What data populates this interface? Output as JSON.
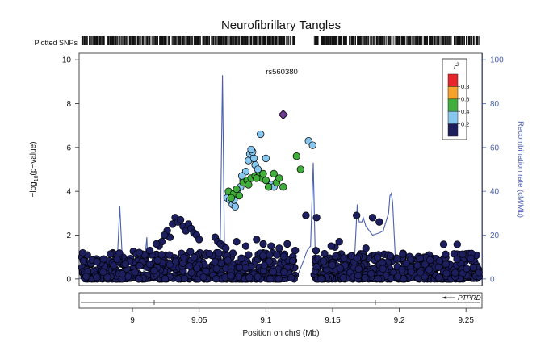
{
  "chart_data": {
    "type": "scatter",
    "title": "Neurofibrillary Tangles",
    "plotted_snps_label": "Plotted SNPs",
    "lead_snp": {
      "name": "rs560380",
      "x": 9.113,
      "y": 7.5
    },
    "xlabel": "Position on chr9 (Mb)",
    "ylabel": "−log10(p−value)",
    "y2label": "Recombination rate (cM/Mb)",
    "xlim": [
      8.96,
      9.262
    ],
    "ylim": [
      -0.3,
      10.3
    ],
    "y2lim": [
      -3,
      103
    ],
    "x_ticks": [
      9,
      9.05,
      9.1,
      9.15,
      9.2,
      9.25
    ],
    "x_tick_labels": [
      "9",
      "9.05",
      "9.1",
      "9.15",
      "9.2",
      "9.25"
    ],
    "y_ticks": [
      0,
      2,
      4,
      6,
      8,
      10
    ],
    "y_tick_labels": [
      "0",
      "2",
      "4",
      "6",
      "8",
      "10"
    ],
    "y2_ticks": [
      0,
      20,
      40,
      60,
      80,
      100
    ],
    "y2_tick_labels": [
      "0",
      "20",
      "40",
      "60",
      "80",
      "100"
    ],
    "legend": {
      "title": "r2",
      "position": "top-right",
      "labels": [
        "0.8",
        "0.6",
        "0.4",
        "0.2"
      ],
      "colors": [
        "#e8232a",
        "#f7a22a",
        "#3fae3a",
        "#86c6ef",
        "#1c1e5e"
      ]
    },
    "colors": {
      "lead": "#6b3a8e",
      "recomb": "#4a60b0",
      "point_outline": "#000000"
    },
    "gene": {
      "name": "PTPRD",
      "strand": "-",
      "x_start": 8.96,
      "x_end": 9.262
    },
    "series": [
      {
        "r2_bin": "0.4-0.6",
        "color": "#3fae3a",
        "x": [
          9.072,
          9.076,
          9.08,
          9.083,
          9.086,
          9.089,
          9.092,
          9.095,
          9.097,
          9.1,
          9.102,
          9.106,
          9.108,
          9.11,
          9.113,
          9.123,
          9.126,
          9.093,
          9.098,
          9.074,
          9.078,
          9.087
        ],
        "y": [
          4.0,
          3.9,
          3.8,
          4.4,
          4.5,
          4.6,
          4.7,
          4.7,
          4.6,
          4.5,
          4.2,
          4.8,
          4.4,
          4.6,
          4.2,
          5.6,
          5.0,
          4.6,
          4.8,
          3.7,
          4.1,
          4.3
        ]
      },
      {
        "r2_bin": "0.2-0.4",
        "color": "#86c6ef",
        "x": [
          9.071,
          9.073,
          9.075,
          9.077,
          9.079,
          9.081,
          9.083,
          9.085,
          9.087,
          9.088,
          9.09,
          9.092,
          9.094,
          9.096,
          9.1,
          9.104,
          9.106,
          9.132,
          9.135,
          9.089,
          9.091,
          9.082,
          9.076
        ],
        "y": [
          3.7,
          3.6,
          3.4,
          3.3,
          3.9,
          4.2,
          4.5,
          4.9,
          5.4,
          5.7,
          5.8,
          5.2,
          5.0,
          6.6,
          5.5,
          4.3,
          4.2,
          6.3,
          6.1,
          5.9,
          5.5,
          4.7,
          3.6
        ]
      },
      {
        "r2_bin": "0-0.2 (elevated)",
        "color": "#1c1e5e",
        "x": [
          9.03,
          9.032,
          9.034,
          9.036,
          9.038,
          9.04,
          9.042,
          9.044,
          9.046,
          9.048,
          9.05,
          9.028,
          9.026,
          9.024,
          9.022,
          9.02,
          9.018,
          9.013,
          9.009,
          9.005,
          9.062,
          9.064,
          9.066,
          9.068,
          9.07,
          9.093,
          9.098,
          9.104,
          9.11,
          9.116,
          9.122,
          9.13,
          9.138,
          9.168,
          9.18,
          9.185,
          9.149,
          9.175,
          9.078,
          9.085,
          9.155
        ],
        "y": [
          2.5,
          2.8,
          2.6,
          2.7,
          2.4,
          2.2,
          2.5,
          2.3,
          2.1,
          2.0,
          1.8,
          1.9,
          2.2,
          2.0,
          1.7,
          1.5,
          1.6,
          1.3,
          1.1,
          1.2,
          1.9,
          1.7,
          1.6,
          1.5,
          1.4,
          1.8,
          1.6,
          1.5,
          1.4,
          1.6,
          1.3,
          2.9,
          2.8,
          2.9,
          2.8,
          2.6,
          1.5,
          1.4,
          1.7,
          1.5,
          1.7
        ]
      }
    ],
    "recombination": {
      "x": [
        8.96,
        8.968,
        8.972,
        8.976,
        8.983,
        8.988,
        8.9905,
        8.993,
        8.997,
        9.0,
        9.005,
        9.008,
        9.0108,
        9.0118,
        9.0128,
        9.014,
        9.02,
        9.03,
        9.04,
        9.05,
        9.055,
        9.06,
        9.0655,
        9.0675,
        9.069,
        9.0705,
        9.072,
        9.076,
        9.08,
        9.09,
        9.1,
        9.11,
        9.12,
        9.124,
        9.128,
        9.131,
        9.1335,
        9.1355,
        9.137,
        9.139,
        9.142,
        9.15,
        9.158,
        9.162,
        9.166,
        9.1685,
        9.169,
        9.17,
        9.172,
        9.173,
        9.175,
        9.18,
        9.185,
        9.188,
        9.192,
        9.193,
        9.194,
        9.195,
        9.197,
        9.2,
        9.21,
        9.22,
        9.23,
        9.24,
        9.25,
        9.262
      ],
      "y": [
        0.2,
        0.3,
        0.4,
        0.5,
        0.8,
        1.0,
        33.0,
        1.2,
        0.6,
        0.4,
        0.5,
        0.7,
        19.0,
        1.5,
        0.5,
        0.4,
        0.3,
        0.5,
        0.6,
        0.6,
        1.0,
        2.0,
        3.0,
        93.0,
        12.0,
        4.0,
        3.0,
        2.0,
        1.0,
        0.8,
        0.7,
        0.8,
        0.6,
        2.0,
        8.0,
        13.0,
        15.0,
        53.0,
        10.0,
        3.0,
        1.0,
        0.6,
        0.6,
        1.0,
        3.0,
        34.0,
        29.0,
        26.0,
        26.0,
        28.0,
        24.0,
        20.0,
        21.0,
        22.0,
        30.0,
        38.0,
        39.0,
        35.0,
        10.0,
        2.0,
        1.0,
        0.8,
        0.6,
        0.6,
        0.5,
        0.4
      ]
    }
  }
}
